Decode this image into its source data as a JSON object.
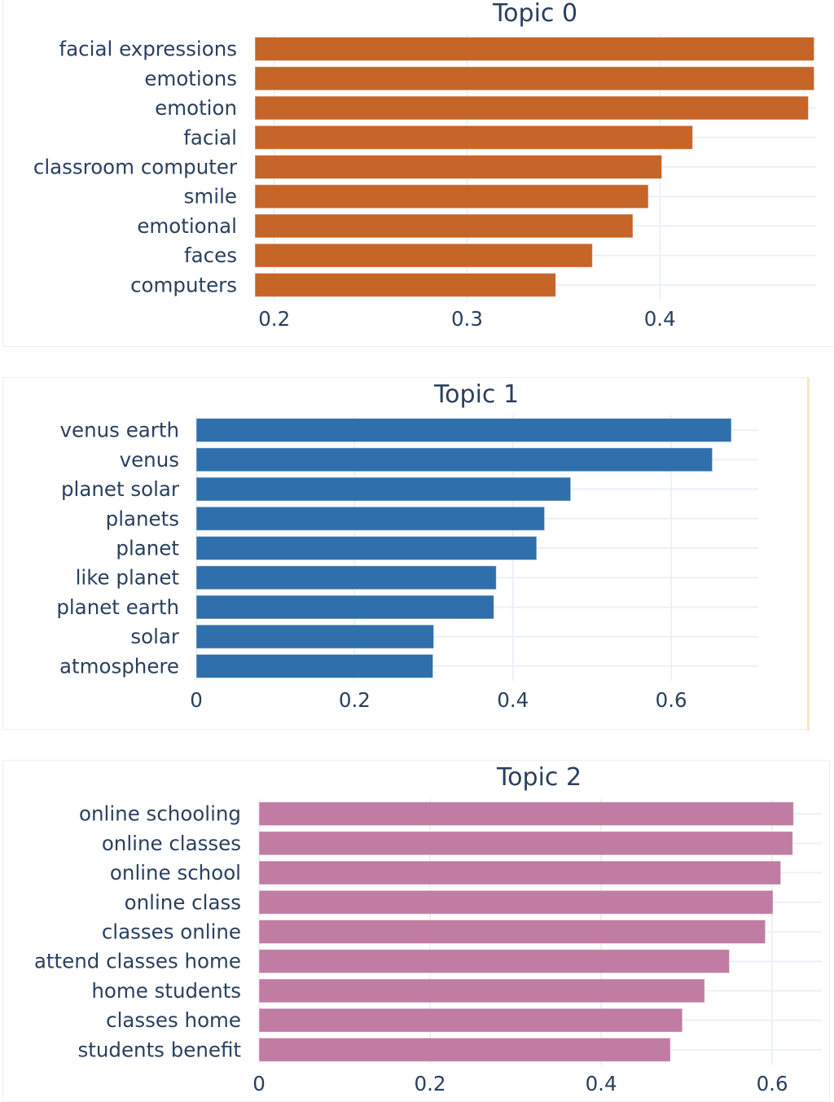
{
  "chart_data": [
    {
      "type": "bar",
      "orientation": "horizontal",
      "title": "Topic 0",
      "color": "#c56528",
      "categories": [
        "facial expressions",
        "emotions",
        "emotion",
        "facial",
        "classroom computer",
        "smile",
        "emotional",
        "faces",
        "computers"
      ],
      "values": [
        0.48,
        0.48,
        0.477,
        0.417,
        0.401,
        0.394,
        0.386,
        0.365,
        0.346
      ],
      "xlim": [
        0.19,
        0.481
      ],
      "xticks": [
        0.2,
        0.3,
        0.4
      ],
      "xtick_labels": [
        "0.2",
        "0.3",
        "0.4"
      ],
      "xlabel": "",
      "ylabel": "",
      "grid": true
    },
    {
      "type": "bar",
      "orientation": "horizontal",
      "title": "Topic 1",
      "color": "#2f6fab",
      "categories": [
        "venus earth",
        "venus",
        "planet solar",
        "planets",
        "planet",
        "like planet",
        "planet earth",
        "solar",
        "atmosphere"
      ],
      "values": [
        0.676,
        0.652,
        0.473,
        0.44,
        0.43,
        0.379,
        0.376,
        0.3,
        0.299
      ],
      "xlim": [
        0,
        0.71
      ],
      "xticks": [
        0,
        0.2,
        0.4,
        0.6
      ],
      "xtick_labels": [
        "0",
        "0.2",
        "0.4",
        "0.6"
      ],
      "xlabel": "",
      "ylabel": "",
      "grid": true
    },
    {
      "type": "bar",
      "orientation": "horizontal",
      "title": "Topic 2",
      "color": "#c07ca2",
      "categories": [
        "online schooling",
        "online classes",
        "online school",
        "online class",
        "classes online",
        "attend classes home",
        "home students",
        "classes home",
        "students benefit"
      ],
      "values": [
        0.625,
        0.624,
        0.61,
        0.601,
        0.592,
        0.55,
        0.521,
        0.495,
        0.481
      ],
      "xlim": [
        0,
        0.658
      ],
      "xticks": [
        0,
        0.2,
        0.4,
        0.6
      ],
      "xtick_labels": [
        "0",
        "0.2",
        "0.4",
        "0.6"
      ],
      "xlabel": "",
      "ylabel": "",
      "grid": true
    }
  ]
}
